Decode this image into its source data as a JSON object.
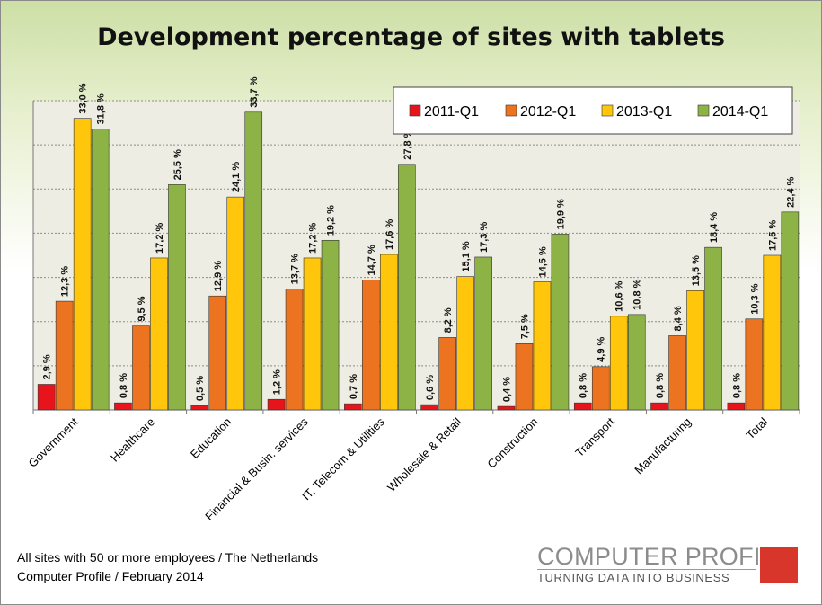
{
  "title": "Development percentage of sites with tablets",
  "footnote": {
    "line1": "All sites with 50 or more employees / The Netherlands",
    "line2": "Computer Profile / February 2014"
  },
  "logo": {
    "name": "COMPUTER PROFILE",
    "tagline": "TURNING DATA INTO BUSINESS",
    "accent_color": "#d8362b"
  },
  "chart_data": {
    "type": "bar",
    "title": "Development percentage of sites with tablets",
    "xlabel": "",
    "ylabel": "",
    "ylim": [
      0,
      35
    ],
    "grid": true,
    "legend_position": "top-right",
    "categories": [
      "Government",
      "Healthcare",
      "Education",
      "Financial & Busin. services",
      "IT, Telecom & Utilities",
      "Wholesale & Retail",
      "Construction",
      "Transport",
      "Manufacturing",
      "Total"
    ],
    "series": [
      {
        "name": "2011-Q1",
        "color": "#e8141c",
        "values": [
          2.9,
          0.8,
          0.5,
          1.2,
          0.7,
          0.6,
          0.4,
          0.8,
          0.8,
          0.8
        ],
        "labels": [
          "2,9 %",
          "0,8 %",
          "0,5 %",
          "1,2 %",
          "0,7 %",
          "0,6 %",
          "0,4 %",
          "0,8 %",
          "0,8 %",
          "0,8 %"
        ]
      },
      {
        "name": "2012-Q1",
        "color": "#ec7320",
        "values": [
          12.3,
          9.5,
          12.9,
          13.7,
          14.7,
          8.2,
          7.5,
          4.9,
          8.4,
          10.3
        ],
        "labels": [
          "12,3 %",
          "9,5 %",
          "12,9 %",
          "13,7 %",
          "14,7 %",
          "8,2 %",
          "7,5 %",
          "4,9 %",
          "8,4 %",
          "10,3 %"
        ]
      },
      {
        "name": "2013-Q1",
        "color": "#ffc60b",
        "values": [
          33.0,
          17.2,
          24.1,
          17.2,
          17.6,
          15.1,
          14.5,
          10.6,
          13.5,
          17.5
        ],
        "labels": [
          "33,0 %",
          "17,2 %",
          "24,1 %",
          "17,2 %",
          "17,6 %",
          "15,1 %",
          "14,5 %",
          "10,6 %",
          "13,5 %",
          "17,5 %"
        ]
      },
      {
        "name": "2014-Q1",
        "color": "#8db347",
        "values": [
          31.8,
          25.5,
          33.7,
          19.2,
          27.8,
          17.3,
          19.9,
          10.8,
          18.4,
          22.4
        ],
        "labels": [
          "31,8 %",
          "25,5 %",
          "33,7 %",
          "19,2 %",
          "27,8 %",
          "17,3 %",
          "19,9 %",
          "10,8 %",
          "18,4 %",
          "22,4 %"
        ]
      }
    ]
  }
}
